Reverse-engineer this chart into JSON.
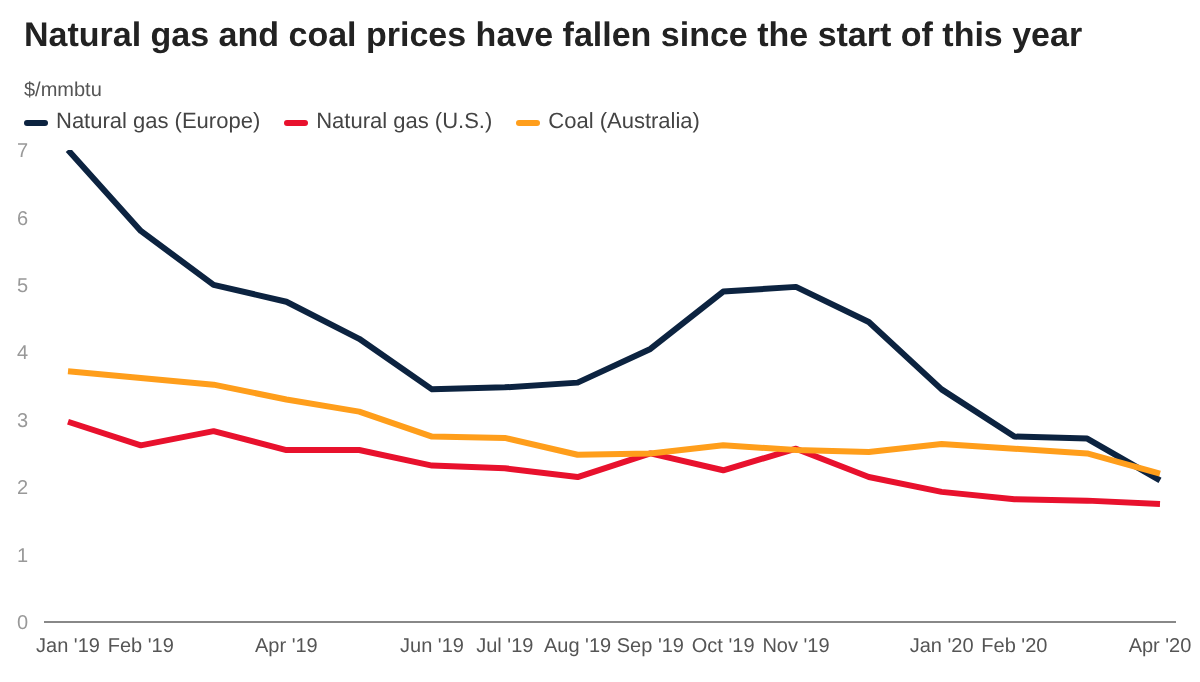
{
  "chart_data": {
    "type": "line",
    "title": "Natural gas and coal prices have fallen since the start of this year",
    "ylabel": "$/mmbtu",
    "categories": [
      "Jan '19",
      "Feb '19",
      null,
      "Apr '19",
      null,
      "Jun '19",
      "Jul '19",
      "Aug '19",
      "Sep '19",
      "Oct '19",
      "Nov '19",
      null,
      "Jan '20",
      "Feb '20",
      null,
      "Apr '20"
    ],
    "series": [
      {
        "name": "Natural gas (Europe)",
        "color": "#0c2340",
        "values": [
          7.0,
          5.8,
          5.0,
          4.75,
          4.2,
          3.45,
          3.48,
          3.55,
          4.05,
          4.9,
          4.97,
          4.45,
          3.45,
          2.75,
          2.72,
          2.1
        ]
      },
      {
        "name": "Natural gas (U.S.)",
        "color": "#e8112d",
        "values": [
          2.97,
          2.62,
          2.83,
          2.55,
          2.55,
          2.32,
          2.28,
          2.15,
          2.5,
          2.25,
          2.57,
          2.15,
          1.93,
          1.82,
          1.8,
          1.75
        ]
      },
      {
        "name": "Coal (Australia)",
        "color": "#ff9e1b",
        "values": [
          3.72,
          3.62,
          3.52,
          3.3,
          3.12,
          2.75,
          2.73,
          2.48,
          2.5,
          2.62,
          2.55,
          2.52,
          2.64,
          2.57,
          2.5,
          2.2
        ]
      }
    ],
    "ylim": [
      0,
      7
    ],
    "yticks": [
      0,
      1,
      2,
      3,
      4,
      5,
      6,
      7
    ],
    "grid": false,
    "legend": "top left",
    "marker": "none",
    "line_style": "solid"
  }
}
